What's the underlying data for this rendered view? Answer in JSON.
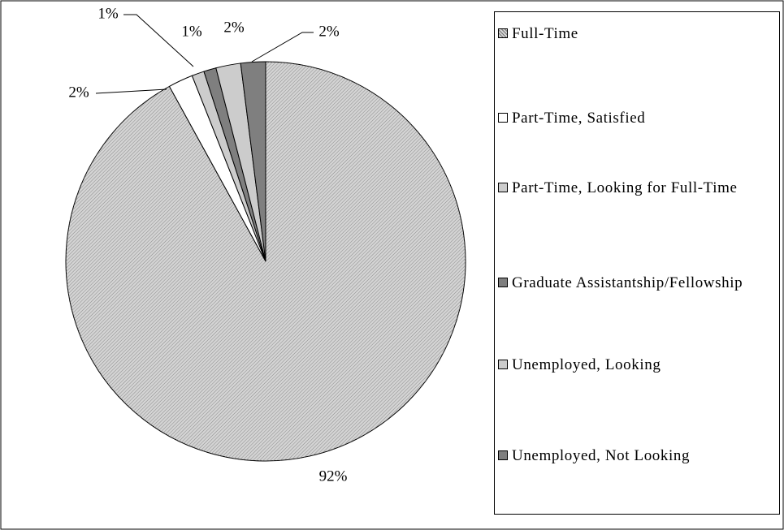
{
  "chart_data": {
    "type": "pie",
    "categories": [
      "Full-Time",
      "Part-Time, Satisfied",
      "Part-Time, Looking for Full-Time",
      "Graduate Assistantship/Fellowship",
      "Unemployed, Looking",
      "Unemployed, Not Looking"
    ],
    "values": [
      92,
      2,
      1,
      1,
      2,
      2
    ],
    "value_labels": [
      "92%",
      "2%",
      "1%",
      "1%",
      "2%",
      "2%"
    ],
    "colors": [
      "#d4d4d4",
      "#ffffff",
      "#cccccc",
      "#7f7f7f",
      "#cccccc",
      "#7f7f7f"
    ],
    "legend": "right"
  }
}
